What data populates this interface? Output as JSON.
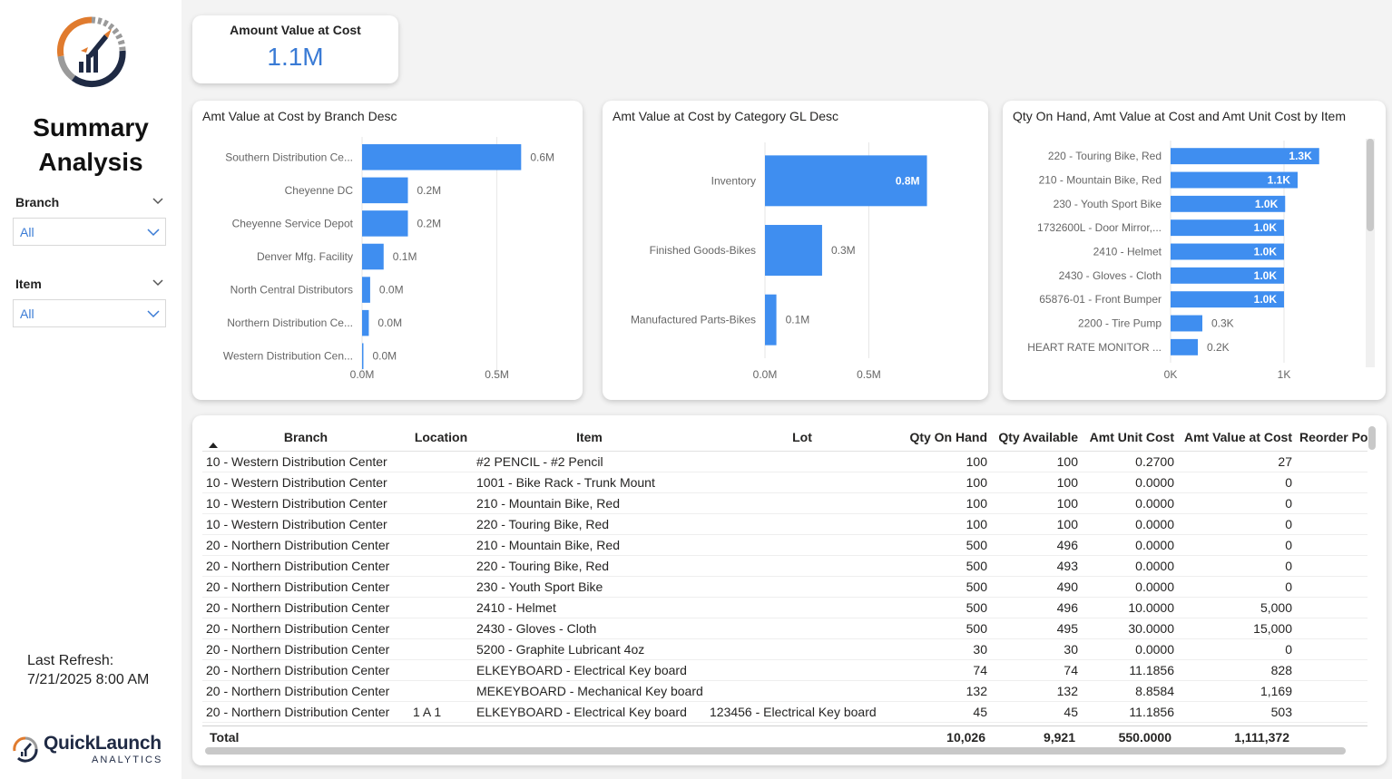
{
  "sidebar": {
    "title_line1": "Summary",
    "title_line2": "Analysis",
    "branch_label": "Branch",
    "branch_value": "All",
    "item_label": "Item",
    "item_value": "All",
    "refresh_label": "Last Refresh:",
    "refresh_value": "7/21/2025 8:00 AM",
    "brand_name": "QuickLaunch",
    "brand_sub": "ANALYTICS",
    "logo_icon": "rocket-gauge-icon"
  },
  "kpi": {
    "title": "Amount Value at Cost",
    "value": "1.1M"
  },
  "colors": {
    "bar": "#3f8ef0",
    "accent_orange": "#e07b2e",
    "accent_navy": "#1f2a44",
    "kpi_value": "#3a7bd5"
  },
  "chart_data": [
    {
      "type": "bar",
      "orientation": "horizontal",
      "title": "Amt Value at Cost by Branch Desc",
      "categories": [
        "Southern Distribution Ce...",
        "Cheyenne DC",
        "Cheyenne Service Depot",
        "Denver Mfg. Facility",
        "North Central Distributors",
        "Northern Distribution Ce...",
        "Western Distribution Cen..."
      ],
      "values": [
        0.59,
        0.17,
        0.17,
        0.08,
        0.03,
        0.025,
        0.005
      ],
      "data_labels": [
        "0.6M",
        "0.2M",
        "0.2M",
        "0.1M",
        "0.0M",
        "0.0M",
        "0.0M"
      ],
      "xlim": [
        0,
        0.7
      ],
      "xticks": [
        0,
        0.5
      ],
      "xtick_labels": [
        "0.0M",
        "0.5M"
      ],
      "grid": true
    },
    {
      "type": "bar",
      "orientation": "horizontal",
      "title": "Amt Value at Cost by Category GL Desc",
      "categories": [
        "Inventory",
        "Finished Goods-Bikes",
        "Manufactured Parts-Bikes"
      ],
      "values": [
        0.78,
        0.275,
        0.055
      ],
      "data_labels": [
        "0.8M",
        "0.3M",
        "0.1M"
      ],
      "xlim": [
        0,
        0.9
      ],
      "xticks": [
        0,
        0.5
      ],
      "xtick_labels": [
        "0.0M",
        "0.5M"
      ],
      "grid": true
    },
    {
      "type": "bar",
      "orientation": "horizontal",
      "title": "Qty On Hand, Amt Value at Cost and Amt Unit Cost by Item",
      "categories": [
        "220 - Touring Bike, Red",
        "210 - Mountain Bike, Red",
        "230 - Youth Sport Bike",
        "1732600L - Door Mirror,...",
        "2410 - Helmet",
        "2430 - Gloves - Cloth",
        "65876-01 - Front Bumper",
        "2200 - Tire Pump",
        "HEART RATE MONITOR ..."
      ],
      "values": [
        1310,
        1120,
        1010,
        1000,
        1000,
        1000,
        1000,
        280,
        240
      ],
      "data_labels": [
        "1.3K",
        "1.1K",
        "1.0K",
        "1.0K",
        "1.0K",
        "1.0K",
        "1.0K",
        "0.3K",
        "0.2K"
      ],
      "xlim": [
        0,
        1600
      ],
      "xticks": [
        0,
        1000
      ],
      "xtick_labels": [
        "0K",
        "1K"
      ],
      "grid": true
    }
  ],
  "table": {
    "headers": [
      "Branch",
      "Location",
      "Item",
      "Lot",
      "Qty On Hand",
      "Qty Available",
      "Amt Unit Cost",
      "Amt Value at Cost",
      "Reorder Po"
    ],
    "rows": [
      [
        "10 - Western Distribution Center",
        "",
        "#2 PENCIL - #2 Pencil",
        "",
        "100",
        "100",
        "0.2700",
        "27",
        ""
      ],
      [
        "10 - Western Distribution Center",
        "",
        "1001 - Bike Rack - Trunk Mount",
        "",
        "100",
        "100",
        "0.0000",
        "0",
        ""
      ],
      [
        "10 - Western Distribution Center",
        "",
        "210 - Mountain Bike, Red",
        "",
        "100",
        "100",
        "0.0000",
        "0",
        ""
      ],
      [
        "10 - Western Distribution Center",
        "",
        "220 - Touring Bike, Red",
        "",
        "100",
        "100",
        "0.0000",
        "0",
        ""
      ],
      [
        "20 - Northern Distribution Center",
        "",
        "210 - Mountain Bike, Red",
        "",
        "500",
        "496",
        "0.0000",
        "0",
        ""
      ],
      [
        "20 - Northern Distribution Center",
        "",
        "220 - Touring Bike, Red",
        "",
        "500",
        "493",
        "0.0000",
        "0",
        ""
      ],
      [
        "20 - Northern Distribution Center",
        "",
        "230 - Youth Sport Bike",
        "",
        "500",
        "490",
        "0.0000",
        "0",
        ""
      ],
      [
        "20 - Northern Distribution Center",
        "",
        "2410 - Helmet",
        "",
        "500",
        "496",
        "10.0000",
        "5,000",
        ""
      ],
      [
        "20 - Northern Distribution Center",
        "",
        "2430 - Gloves - Cloth",
        "",
        "500",
        "495",
        "30.0000",
        "15,000",
        ""
      ],
      [
        "20 - Northern Distribution Center",
        "",
        "5200 - Graphite Lubricant 4oz",
        "",
        "30",
        "30",
        "0.0000",
        "0",
        ""
      ],
      [
        "20 - Northern Distribution Center",
        "",
        "ELKEYBOARD - Electrical Key board",
        "",
        "74",
        "74",
        "11.1856",
        "828",
        ""
      ],
      [
        "20 - Northern Distribution Center",
        "",
        "MEKEYBOARD - Mechanical Key board",
        "",
        "132",
        "132",
        "8.8584",
        "1,169",
        ""
      ],
      [
        "20 - Northern Distribution Center",
        "1 A  1",
        "ELKEYBOARD - Electrical Key board",
        "123456 - Electrical Key board",
        "45",
        "45",
        "11.1856",
        "503",
        ""
      ]
    ],
    "total": {
      "label": "Total",
      "qty_on_hand": "10,026",
      "qty_available": "9,921",
      "amt_unit_cost": "550.0000",
      "amt_value_at_cost": "1,111,372"
    }
  }
}
